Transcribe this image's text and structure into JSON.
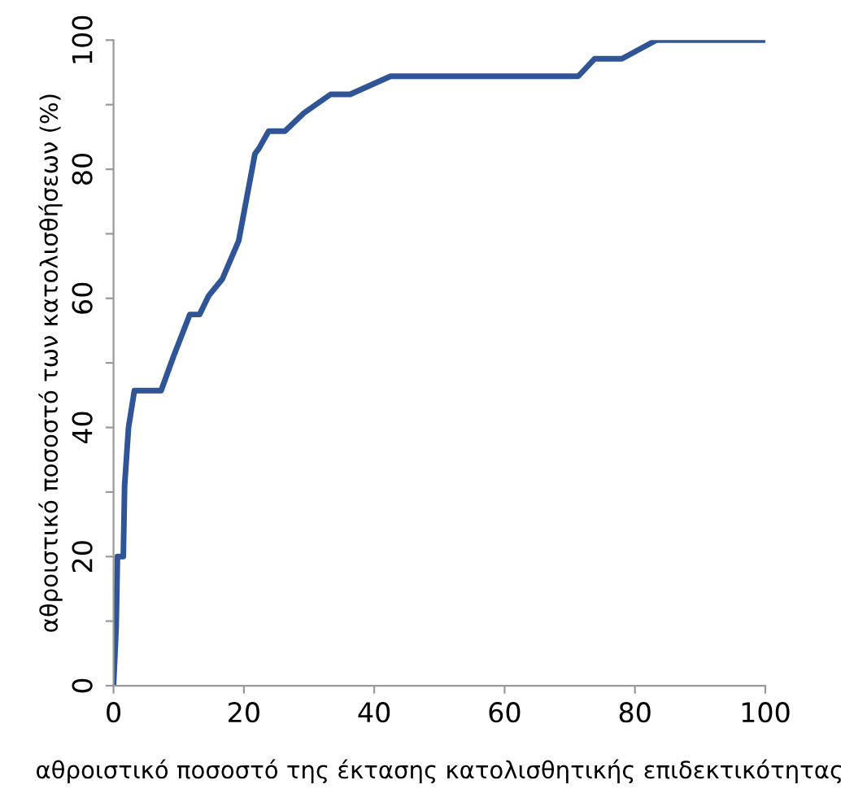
{
  "chart_data": {
    "type": "line",
    "xlabel": "αθροιστικό ποσοστό της έκτασης κατολισθητικής επιδεκτικότητας",
    "ylabel": "αθροιστικό ποσοστό των κατολισθήσεων (%)",
    "series": [
      {
        "color": "#2f5597",
        "x": [
          0,
          0.4,
          0.6,
          1.5,
          1.7,
          2.3,
          3.2,
          7.3,
          9.2,
          11.7,
          13.2,
          14.6,
          16.7,
          19.2,
          21.7,
          22.3,
          23.8,
          26.3,
          29.2,
          33.3,
          36.3,
          42.5,
          71.3,
          73.8,
          78,
          83.3,
          100
        ],
        "values": [
          0,
          9,
          20,
          20,
          31,
          40,
          45.7,
          45.7,
          51,
          57.5,
          57.5,
          60.4,
          63,
          68.9,
          82.4,
          83.2,
          85.9,
          85.9,
          88.7,
          91.6,
          91.6,
          94.4,
          94.4,
          97.1,
          97.1,
          100,
          100
        ]
      }
    ],
    "xlim": [
      0,
      100
    ],
    "ylim": [
      0,
      100
    ],
    "xticks": [
      0,
      20,
      40,
      60,
      80,
      100
    ],
    "yticks": [
      0,
      {
        "value": 10,
        "label": null
      },
      20,
      {
        "value": 30,
        "label": null
      },
      40,
      {
        "value": 50,
        "label": null
      },
      60,
      {
        "value": 70,
        "label": null
      },
      80,
      {
        "value": 90,
        "label": null
      },
      100
    ],
    "grid": false,
    "legend": false,
    "marker": "none",
    "line_style": "solid"
  }
}
